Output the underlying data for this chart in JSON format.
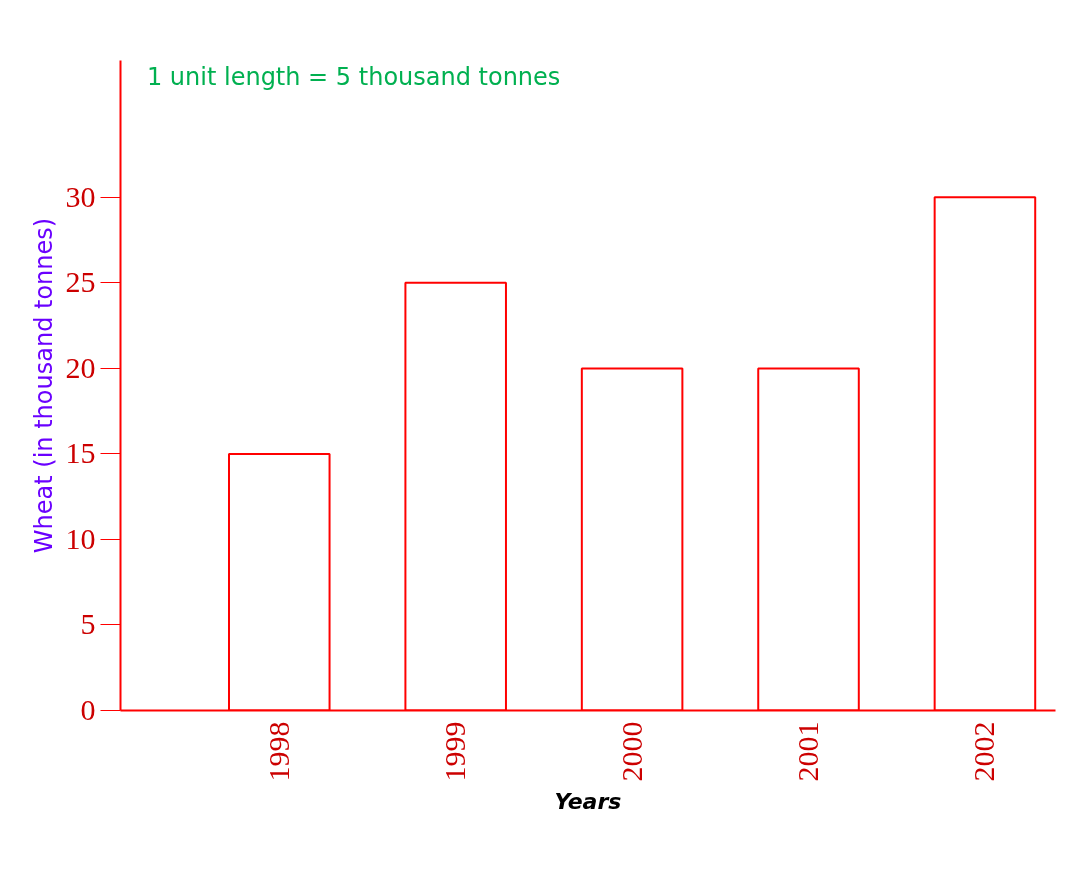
{
  "chart_data": {
    "type": "bar",
    "xlabel": "Years",
    "ylabel": "Wheat (in thousand tonnes)",
    "annotations": [
      "1 unit length = 5 thousand tonnes"
    ],
    "categories": [
      "1998",
      "1999",
      "2000",
      "2001",
      "2002"
    ],
    "values": [
      15,
      25,
      20,
      20,
      30
    ],
    "color": "#ff0000",
    "ylim": [
      0,
      38
    ],
    "yticks": [
      0,
      5,
      10,
      15,
      20,
      25,
      30
    ],
    "grid": false
  }
}
